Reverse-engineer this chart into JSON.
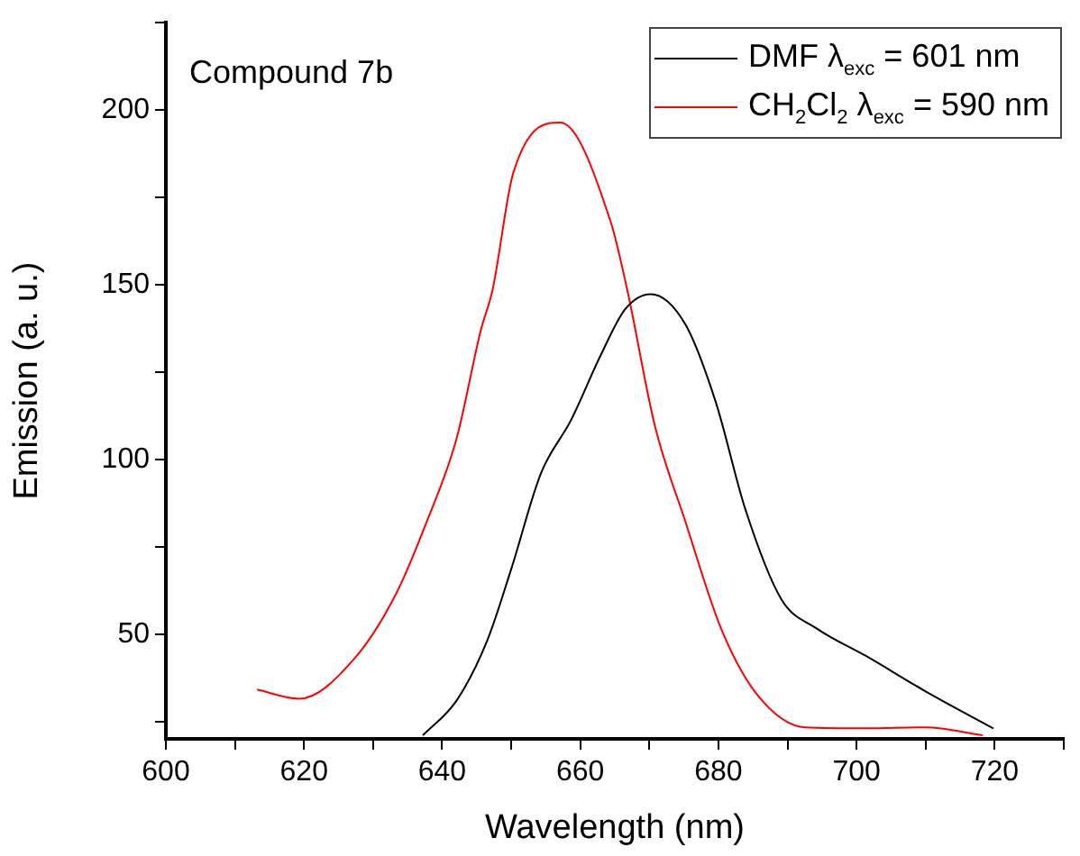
{
  "chart_data": {
    "type": "line",
    "xlabel": "Wavelength (nm)",
    "ylabel": "Emission (a. u.)",
    "annotations": [
      "Compound 7b"
    ],
    "xlim": [
      600,
      730
    ],
    "ylim": [
      20,
      225
    ],
    "xticks": [
      600,
      {
        "value": 610,
        "label": null
      },
      620,
      {
        "value": 630,
        "label": null
      },
      640,
      {
        "value": 650,
        "label": null
      },
      660,
      {
        "value": 670,
        "label": null
      },
      680,
      {
        "value": 690,
        "label": null
      },
      700,
      {
        "value": 710,
        "label": null
      },
      720,
      {
        "value": 730,
        "label": null
      }
    ],
    "yticks": [
      {
        "value": 25,
        "label": null
      },
      50,
      {
        "value": 75,
        "label": null
      },
      100,
      {
        "value": 125,
        "label": null
      },
      150,
      {
        "value": 175,
        "label": null
      },
      200,
      {
        "value": 225,
        "label": null
      }
    ],
    "grid": false,
    "legend": "top right",
    "series": [
      {
        "name": "DMF λ$_{exc}$ = 601 nm",
        "color": "#000000",
        "x": [
          637.2,
          642.1,
          646.5,
          650,
          654.3,
          658.7,
          663,
          666.5,
          670.2,
          675.2,
          679.6,
          683.9,
          689.1,
          694.3,
          701.3,
          710,
          719.8
        ],
        "values": [
          21,
          31,
          48,
          68.6,
          96,
          111.4,
          130,
          143,
          147.3,
          138.7,
          116.5,
          85.7,
          60,
          51.5,
          43.8,
          33.6,
          23
        ]
      },
      {
        "name": "CH$_{2}$Cl$_{2}$ λ$_{exc}$ = 590 nm",
        "color": "#ff0000",
        "x": [
          613.2,
          619.3,
          627.3,
          633.4,
          637.8,
          642.1,
          645.6,
          647.3,
          650.3,
          657.1,
          664.4,
          666.8,
          670.8,
          675.2,
          680.4,
          685.6,
          692.6,
          701.3,
          710,
          718.3
        ],
        "values": [
          34.1,
          31.5,
          43,
          61.8,
          82.3,
          106,
          137,
          148.5,
          182,
          196.4,
          168,
          148.5,
          109.6,
          82.3,
          51.5,
          32.7,
          23.3,
          23,
          23.3,
          21
        ]
      }
    ]
  }
}
